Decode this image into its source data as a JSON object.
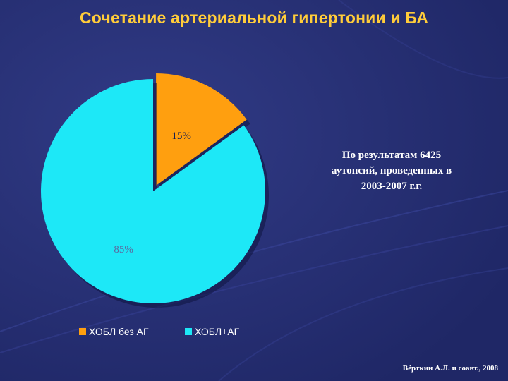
{
  "title": "Сочетание артериальной гипертонии и БА",
  "note": {
    "lines": [
      "По результатам 6425",
      "аутопсий,  проведенных в",
      "2003-2007 г.г."
    ]
  },
  "source": "Вёрткин А.Л. и соавт., 2008",
  "colors": {
    "background": "#262f73",
    "title": "#ffcc3a",
    "slice_orange": "#ff9f0f",
    "slice_cyan": "#1de8f7"
  },
  "chart_data": {
    "type": "pie",
    "slices": [
      {
        "label": "ХОБЛ без АГ",
        "value": 15,
        "display": "15%",
        "color": "#ff9f0f",
        "exploded": true
      },
      {
        "label": "ХОБЛ+АГ",
        "value": 85,
        "display": "85%",
        "color": "#1de8f7",
        "exploded": false
      }
    ],
    "start": "top",
    "direction": "clockwise",
    "legend": "bottom"
  }
}
